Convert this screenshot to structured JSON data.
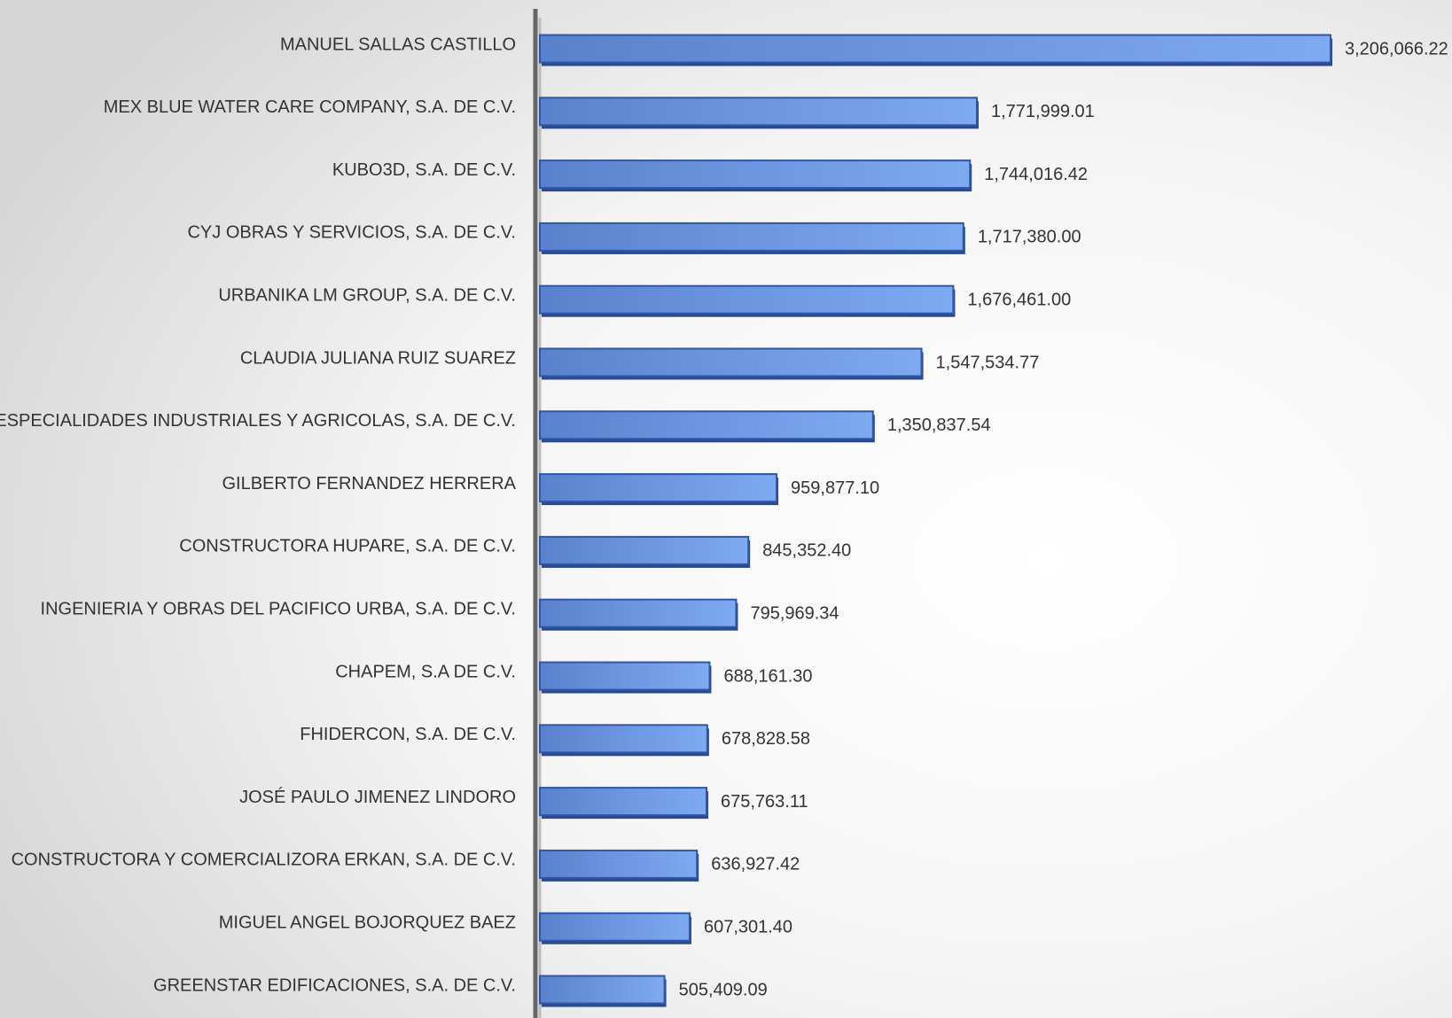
{
  "chart_data": {
    "type": "bar",
    "orientation": "horizontal",
    "color": "#6a93dd",
    "categories": [
      "MANUEL  SALLAS CASTILLO",
      "MEX BLUE WATER CARE COMPANY, S.A. DE C.V.",
      "KUBO3D, S.A. DE C.V.",
      "CYJ OBRAS Y SERVICIOS, S.A. DE C.V.",
      "URBANIKA LM GROUP, S.A. DE C.V.",
      "CLAUDIA JULIANA RUIZ SUAREZ",
      "ESPECIALIDADES INDUSTRIALES Y AGRICOLAS, S.A. DE C.V.",
      "GILBERTO FERNANDEZ HERRERA",
      "CONSTRUCTORA HUPARE, S.A. DE C.V.",
      "INGENIERIA Y OBRAS DEL PACIFICO URBA, S.A. DE C.V.",
      "CHAPEM, S.A DE C.V.",
      "FHIDERCON, S.A. DE C.V.",
      "JOSÉ PAULO JIMENEZ LINDORO",
      "CONSTRUCTORA Y COMERCIALIZORA ERKAN, S.A. DE C.V.",
      "MIGUEL ANGEL BOJORQUEZ BAEZ",
      "GREENSTAR EDIFICACIONES, S.A. DE C.V."
    ],
    "values": [
      3206066.22,
      1771999.01,
      1744016.42,
      1717380.0,
      1676461.0,
      1547534.77,
      1350837.54,
      959877.1,
      845352.4,
      795969.34,
      688161.3,
      678828.58,
      675763.11,
      636927.42,
      607301.4,
      505409.09
    ],
    "value_labels": [
      "3,206,066.22",
      "1,771,999.01",
      "1,744,016.42",
      "1,717,380.00",
      "1,676,461.00",
      "1,547,534.77",
      "1,350,837.54",
      "959,877.10",
      "845,352.40",
      "795,969.34",
      "688,161.30",
      "678,828.58",
      "675,763.11",
      "636,927.42",
      "607,301.40",
      "505,409.09"
    ]
  }
}
